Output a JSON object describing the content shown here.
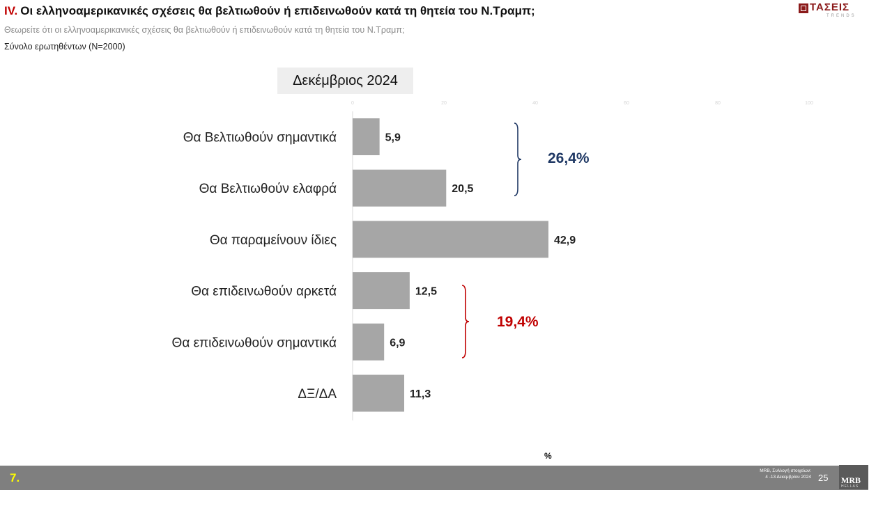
{
  "header": {
    "number": "IV.",
    "title": "Οι ελληνοαμερικανικές σχέσεις θα βελτιωθούν ή επιδεινωθούν κατά τη θητεία του Ν.Τραμπ;",
    "question": "Θεωρείτε ότι οι ελληνοαμερικανικές σχέσεις θα βελτιωθούν ή επιδεινωθούν κατά τη θητεία του Ν.Τραμπ;",
    "base": "Σύνολο ερωτηθέντων (N=2000)"
  },
  "logo": {
    "text": "ΤΑΣΕΙΣ",
    "sub": "TRENDS"
  },
  "period_label": "Δεκέμβριος 2024",
  "chart_data": {
    "type": "bar",
    "orientation": "horizontal",
    "categories": [
      "Θα Βελτιωθούν σημαντικά",
      "Θα Βελτιωθούν ελαφρά",
      "Θα παραμείνουν ίδιες",
      "Θα επιδεινωθούν αρκετά",
      "Θα επιδεινωθούν σημαντικά",
      "ΔΞ/ΔΑ"
    ],
    "values": [
      5.9,
      20.5,
      42.9,
      12.5,
      6.9,
      11.3
    ],
    "value_labels": [
      "5,9",
      "20,5",
      "42,9",
      "12,5",
      "6,9",
      "11,3"
    ],
    "xlim": [
      0,
      100
    ],
    "ticks": [
      0,
      20,
      40,
      60,
      80,
      100
    ],
    "tick_labels": [
      "0",
      "20",
      "40",
      "60",
      "80",
      "100"
    ],
    "bar_color": "#a6a6a6",
    "xlabel": "%",
    "groups": [
      {
        "label": "26,4%",
        "from": 0,
        "to": 1,
        "color": "#1f3864"
      },
      {
        "label": "19,4%",
        "from": 3,
        "to": 4,
        "color": "#c00000"
      }
    ]
  },
  "footer": {
    "slide_number": "7.",
    "note_line1": "MRB, Συλλογή στοιχείων:",
    "note_line2": "4 -13 Δεκεμβρίου 2024",
    "page": "25",
    "logo": "MRB",
    "logo_sub": "HELLAS"
  }
}
